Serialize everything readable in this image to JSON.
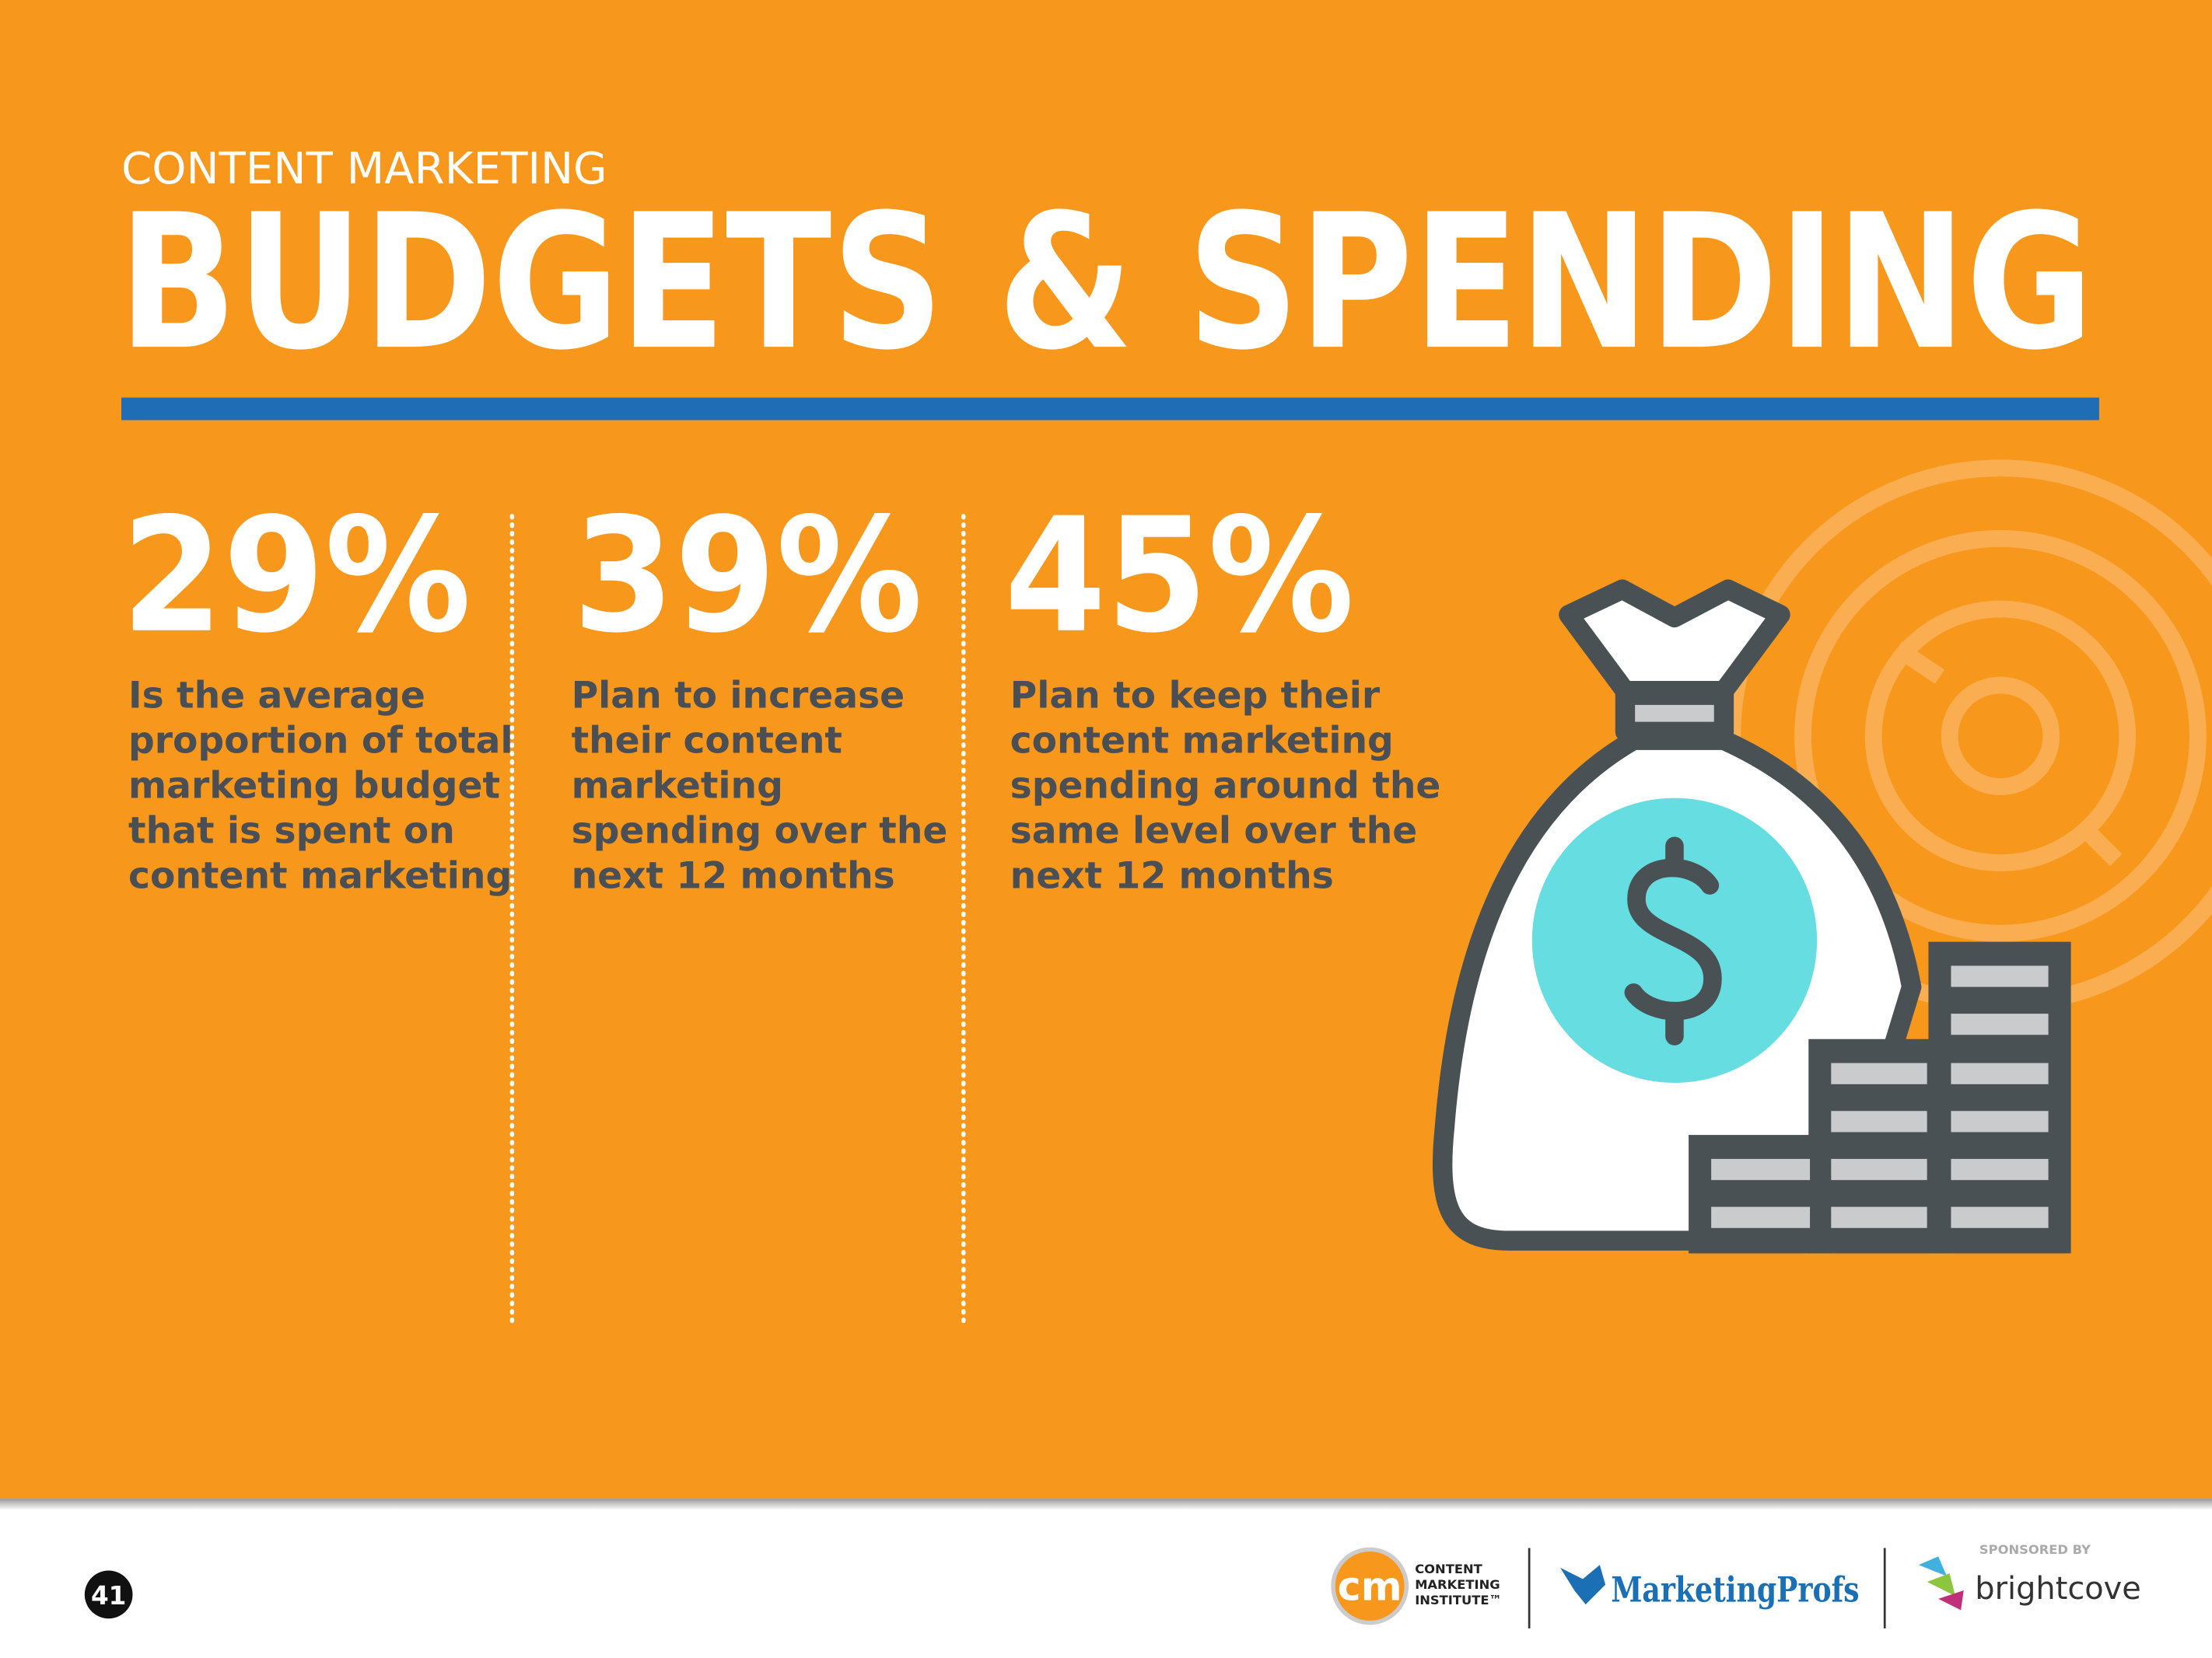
{
  "header": {
    "kicker": "CONTENT MARKETING",
    "title": "BUDGETS & SPENDING"
  },
  "stats": [
    {
      "value": "29%",
      "lines": [
        "Is the average",
        "proportion of total",
        "marketing budget",
        "that is spent on",
        "content marketing"
      ]
    },
    {
      "value": "39%",
      "lines": [
        "Plan to increase",
        "their content",
        "marketing",
        "spending over the",
        "next 12 months"
      ]
    },
    {
      "value": "45%",
      "lines": [
        "Plan to keep their",
        "content marketing",
        "spending around the",
        "same level over the",
        "next 12 months"
      ]
    }
  ],
  "footer": {
    "page_number": "41",
    "cmi_logo": "cm",
    "cmi_name": [
      "CONTENT",
      "MARKETING",
      "INSTITUTE™"
    ],
    "marketingprofs": "MarketingProfs",
    "sponsored_by": "SPONSORED BY",
    "brightcove": "brightcove"
  }
}
